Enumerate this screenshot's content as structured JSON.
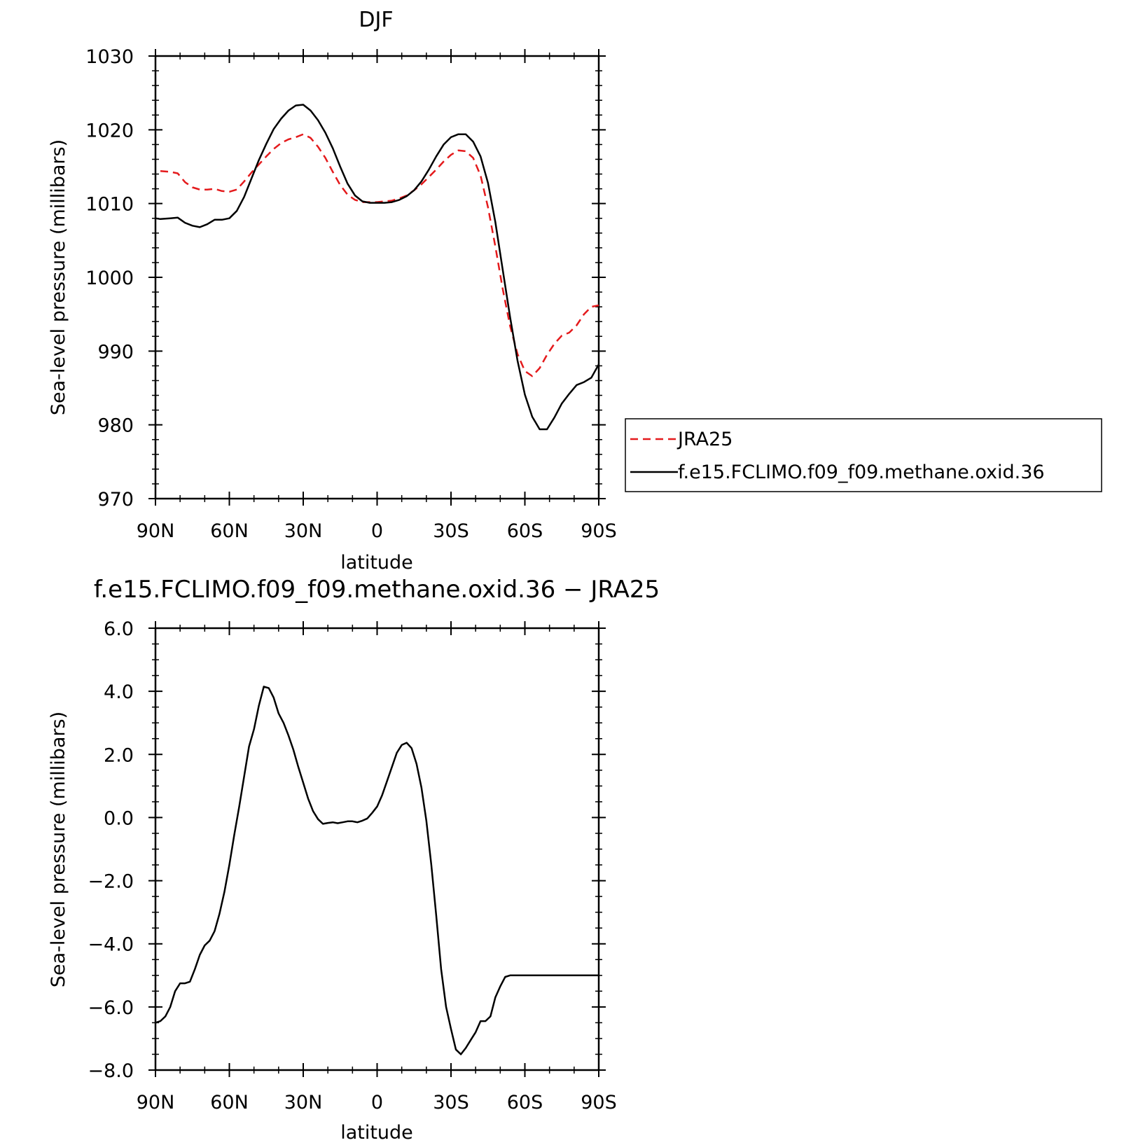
{
  "chart_data": [
    {
      "type": "line",
      "title": "DJF",
      "xlabel": "latitude",
      "ylabel": "Sea-level pressure (millibars)",
      "xlim": [
        90,
        -90
      ],
      "ylim": [
        970,
        1030
      ],
      "yticks": [
        "970",
        "980",
        "990",
        "1000",
        "1010",
        "1020",
        "1030"
      ],
      "xticks": [
        "90N",
        "60N",
        "30N",
        "0",
        "30S",
        "60S",
        "90S"
      ],
      "legend_position": "right",
      "series": [
        {
          "name": "JRA25",
          "color": "#e41a1c",
          "dash": "dashed",
          "x": [
            88,
            84,
            81,
            78,
            75,
            72,
            69,
            66,
            63,
            60,
            57,
            54,
            51,
            48,
            45,
            42,
            39,
            36,
            33,
            30,
            27,
            24,
            21,
            18,
            15,
            12,
            9,
            6,
            3,
            0,
            -3,
            -6,
            -9,
            -12,
            -15,
            -18,
            -21,
            -24,
            -27,
            -30,
            -33,
            -36,
            -39,
            -42,
            -45,
            -48,
            -51,
            -54,
            -57,
            -60,
            -63,
            -66,
            -69,
            -72,
            -75,
            -78,
            -81,
            -84,
            -87,
            -90
          ],
          "y": [
            1014.4,
            1014.3,
            1014.1,
            1012.9,
            1012.2,
            1011.9,
            1011.9,
            1012.0,
            1011.7,
            1011.6,
            1011.9,
            1013.0,
            1014.2,
            1015.3,
            1016.4,
            1017.4,
            1018.2,
            1018.7,
            1019.0,
            1019.4,
            1018.9,
            1017.7,
            1016.2,
            1014.3,
            1012.5,
            1011.2,
            1010.5,
            1010.2,
            1010.2,
            1010.2,
            1010.3,
            1010.4,
            1010.7,
            1011.1,
            1011.8,
            1012.6,
            1013.6,
            1014.6,
            1015.7,
            1016.6,
            1017.2,
            1017.1,
            1016.2,
            1013.8,
            1009.5,
            1004.2,
            998.4,
            993.4,
            989.6,
            987.3,
            986.6,
            987.7,
            989.5,
            991.0,
            992.1,
            992.5,
            993.5,
            995.0,
            996.0,
            996.2
          ]
        },
        {
          "name": "f.e15.FCLIMO.f09_f09.methane.oxid.36",
          "color": "#000000",
          "dash": "solid",
          "x": [
            90,
            88,
            84,
            81,
            78,
            75,
            72,
            69,
            66,
            63,
            60,
            57,
            54,
            51,
            48,
            45,
            42,
            39,
            36,
            33,
            30,
            27,
            24,
            21,
            18,
            15,
            12,
            9,
            6,
            3,
            0,
            -3,
            -6,
            -9,
            -12,
            -15,
            -18,
            -21,
            -24,
            -27,
            -30,
            -33,
            -36,
            -39,
            -42,
            -45,
            -48,
            -51,
            -54,
            -57,
            -60,
            -63,
            -66,
            -69,
            -72,
            -75,
            -78,
            -81,
            -84,
            -87,
            -90
          ],
          "y": [
            1008.0,
            1007.9,
            1008.0,
            1008.1,
            1007.4,
            1007.0,
            1006.8,
            1007.2,
            1007.8,
            1007.8,
            1008.0,
            1009.0,
            1010.9,
            1013.4,
            1015.9,
            1018.1,
            1020.1,
            1021.5,
            1022.6,
            1023.3,
            1023.4,
            1022.6,
            1021.3,
            1019.6,
            1017.5,
            1015.0,
            1012.7,
            1011.1,
            1010.3,
            1010.1,
            1010.1,
            1010.1,
            1010.2,
            1010.5,
            1011.0,
            1011.8,
            1013.0,
            1014.6,
            1016.4,
            1018.0,
            1019.0,
            1019.4,
            1019.4,
            1018.4,
            1016.4,
            1012.8,
            1007.5,
            1001.0,
            994.6,
            988.7,
            984.1,
            981.1,
            979.4,
            979.4,
            981.0,
            982.9,
            984.2,
            985.4,
            985.8,
            986.4,
            988.2
          ]
        }
      ]
    },
    {
      "type": "line",
      "title": "f.e15.FCLIMO.f09_f09.methane.oxid.36 − JRA25",
      "xlabel": "latitude",
      "ylabel": "Sea-level pressure (millibars)",
      "xlim": [
        90,
        -90
      ],
      "ylim": [
        -8,
        6
      ],
      "yticks": [
        "−8.0",
        "−6.0",
        "−4.0",
        "−2.0",
        "0.0",
        "2.0",
        "4.0",
        "6.0"
      ],
      "xticks": [
        "90N",
        "60N",
        "30N",
        "0",
        "30S",
        "60S",
        "90S"
      ],
      "series": [
        {
          "color": "#000000",
          "dash": "solid",
          "x": [
            90,
            88,
            86,
            84,
            82,
            80,
            78,
            76,
            74,
            72,
            70,
            68,
            66,
            64,
            62,
            60,
            58,
            56,
            54,
            52,
            50,
            48,
            46,
            44,
            42,
            40,
            38,
            36,
            34,
            32,
            30,
            28,
            26,
            24,
            22,
            20,
            18,
            16,
            14,
            12,
            10,
            8,
            6,
            4,
            2,
            0,
            -2,
            -4,
            -6,
            -8,
            -10,
            -12,
            -14,
            -16,
            -18,
            -20,
            -22,
            -24,
            -26,
            -28,
            -30,
            -32,
            -34,
            -36,
            -38,
            -40,
            -42,
            -44,
            -46,
            -48,
            -50,
            -52,
            -54,
            -56,
            -58,
            -60,
            -62,
            -64,
            -66,
            -68,
            -70,
            -72,
            -74,
            -76,
            -78,
            -80,
            -82,
            -84,
            -86,
            -88,
            -90
          ],
          "y": [
            -6.5,
            -6.45,
            -6.3,
            -6.0,
            -5.5,
            -5.25,
            -5.25,
            -5.2,
            -4.8,
            -4.35,
            -4.05,
            -3.9,
            -3.6,
            -3.05,
            -2.35,
            -1.5,
            -0.55,
            0.35,
            1.3,
            2.25,
            2.8,
            3.55,
            4.15,
            4.1,
            3.8,
            3.3,
            3.0,
            2.6,
            2.15,
            1.6,
            1.1,
            0.6,
            0.2,
            -0.05,
            -0.2,
            -0.17,
            -0.15,
            -0.18,
            -0.15,
            -0.12,
            -0.12,
            -0.15,
            -0.1,
            -0.03,
            0.15,
            0.35,
            0.7,
            1.15,
            1.6,
            2.05,
            2.3,
            2.37,
            2.2,
            1.7,
            0.95,
            -0.1,
            -1.5,
            -3.1,
            -4.8,
            -6.0,
            -6.7,
            -7.35,
            -7.5,
            -7.3,
            -7.05,
            -6.8,
            -6.45,
            -6.45,
            -6.3,
            -5.7,
            -5.35,
            -5.05,
            -5.0,
            -5.0,
            -5.0,
            -5.0,
            -5.0,
            -5.0,
            -5.0,
            -5.0,
            -5.0,
            -5.0,
            -5.0,
            -5.0,
            -5.0,
            -5.0,
            -5.0,
            -5.0,
            -5.0,
            -5.0,
            -5.0
          ]
        }
      ]
    }
  ]
}
